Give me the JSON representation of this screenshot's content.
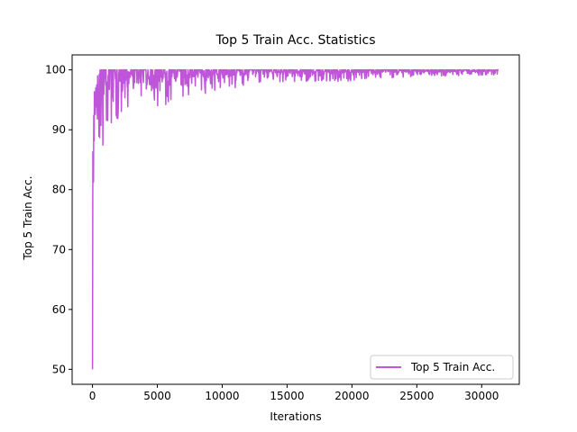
{
  "chart_data": {
    "type": "line",
    "title": "Top 5 Train Acc. Statistics",
    "xlabel": "Iterations",
    "ylabel": "Top 5 Train Acc.",
    "xlim": [
      -1570,
      32900
    ],
    "ylim": [
      47.5,
      102.5
    ],
    "xticks": [
      0,
      5000,
      10000,
      15000,
      20000,
      25000,
      30000
    ],
    "yticks": [
      50,
      60,
      70,
      80,
      90,
      100
    ],
    "grid": false,
    "legend_position": "lower right",
    "series": [
      {
        "name": "Top 5 Train Acc.",
        "color": "#bf55d9",
        "x": [
          0,
          15,
          30,
          50,
          80,
          100,
          130,
          160,
          200,
          250,
          300,
          350,
          400,
          500,
          600,
          700,
          800,
          1000,
          1200,
          1500,
          1800,
          2000,
          2500,
          3000,
          3500,
          4000,
          5000,
          6000,
          7000,
          8000,
          9000,
          10000,
          11000,
          12000,
          13000,
          14000,
          15000,
          16000,
          17000,
          18000,
          19000,
          20000,
          21000,
          22000,
          23000,
          24000,
          25000,
          26000,
          27000,
          28000,
          29000,
          30000,
          31300
        ],
        "y_upper": [
          73,
          82,
          90,
          94,
          94,
          97,
          95,
          97,
          97,
          97,
          97,
          98,
          99,
          99,
          100,
          100,
          100,
          100,
          100,
          100,
          100,
          100,
          100,
          100,
          100,
          100,
          100,
          100,
          100,
          100,
          100,
          100,
          100,
          100,
          100,
          100,
          100,
          100,
          100,
          100,
          100,
          100,
          100,
          100,
          100,
          100,
          100,
          100,
          100,
          100,
          100,
          100,
          100
        ],
        "y_lower": [
          50,
          73,
          75,
          77,
          78,
          80,
          80,
          81,
          81,
          82,
          84,
          85,
          86,
          86,
          86,
          86,
          87,
          88,
          89,
          90,
          91,
          92,
          93,
          93,
          93.5,
          94,
          94,
          94,
          95,
          96,
          96,
          97,
          97,
          97,
          98,
          98,
          98,
          98,
          98,
          98,
          98,
          98,
          98.5,
          98.5,
          98.5,
          98.5,
          99,
          99,
          99,
          99,
          99,
          99,
          99
        ]
      }
    ]
  }
}
